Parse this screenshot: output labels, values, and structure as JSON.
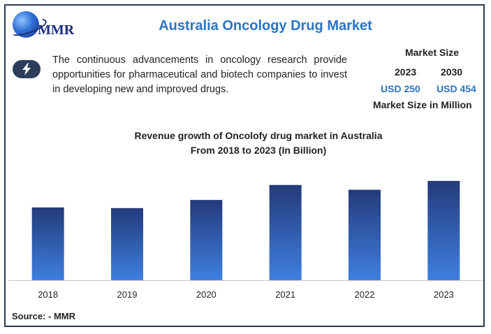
{
  "logo": {
    "text": "MMR"
  },
  "header": {
    "title": "Australia Oncology Drug Market"
  },
  "info": {
    "icon": "lightning-bolt-icon",
    "description": "The continuous advancements in oncology research provide opportunities for pharmaceutical and biotech companies to invest in developing new and improved drugs."
  },
  "market_size": {
    "heading": "Market Size",
    "year_1": "2023",
    "year_2": "2030",
    "value_1": "USD  250",
    "value_2": "USD 454",
    "footer": "Market Size in Million"
  },
  "chart_data": {
    "type": "bar",
    "title": "Revenue growth of Oncolofy drug market in Australia",
    "subtitle": "From 2018 to 2023 (In Billion)",
    "categories": [
      "2018",
      "2019",
      "2020",
      "2021",
      "2022",
      "2023"
    ],
    "values": [
      107,
      106,
      118,
      140,
      133,
      146
    ],
    "ylim": [
      0,
      150
    ],
    "xlabel": "",
    "ylabel": "",
    "grid": false
  },
  "colors": {
    "bar_top": "#243a7a",
    "bar_bottom": "#3f7fe0",
    "accent": "#2a74c5",
    "frame": "#2b3a52"
  },
  "source": "Source: - MMR"
}
